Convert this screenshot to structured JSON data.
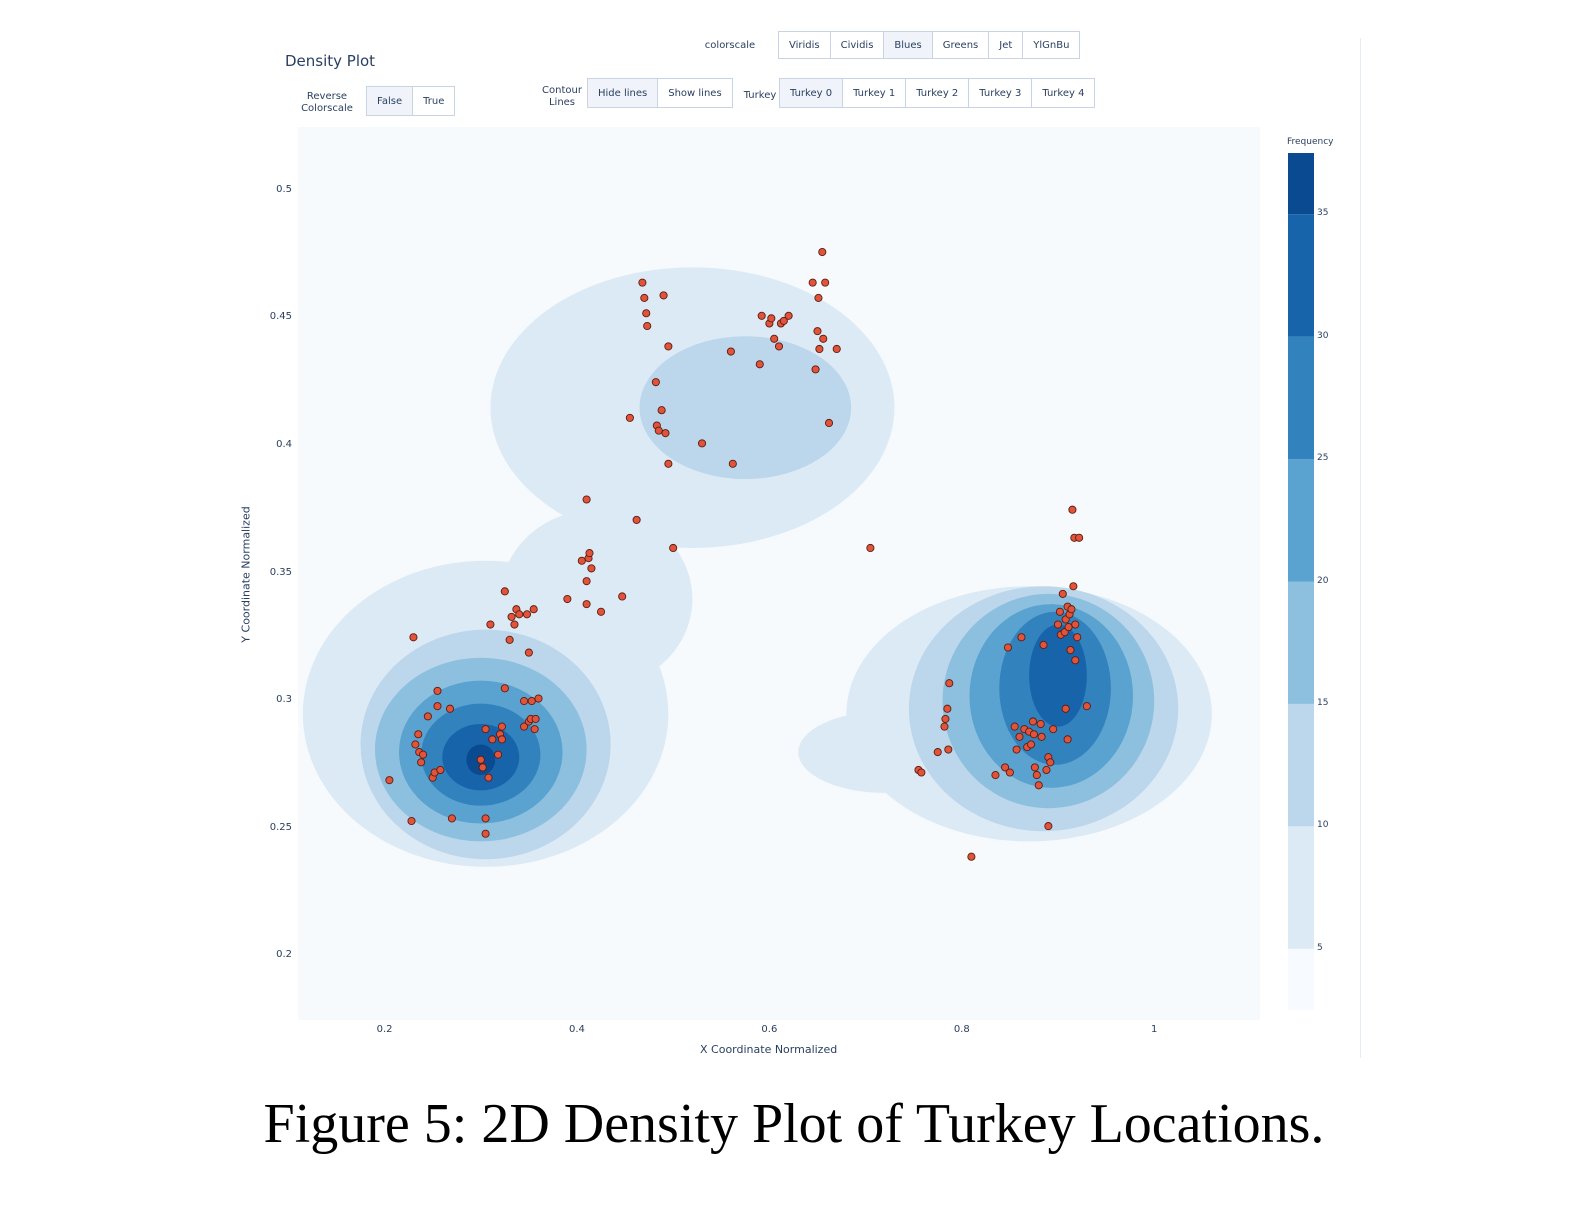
{
  "header": {
    "title": "Density Plot",
    "colorscale_label": "colorscale",
    "colorscales": [
      "Viridis",
      "Cividis",
      "Blues",
      "Greens",
      "Jet",
      "YlGnBu"
    ],
    "reverse_label_1": "Reverse",
    "reverse_label_2": "Colorscale",
    "reverse_options": [
      "False",
      "True"
    ],
    "contour_label_1": "Contour",
    "contour_label_2": "Lines",
    "contour_options": [
      "Hide lines",
      "Show lines"
    ],
    "turkey_label": "Turkey",
    "turkey_options": [
      "Turkey 0",
      "Turkey 1",
      "Turkey 2",
      "Turkey 3",
      "Turkey 4"
    ]
  },
  "caption": "Figure 5: 2D Density Plot of Turkey Locations.",
  "colors": {
    "plot_bg": "#f7fafd",
    "point_fill": "#e2533b",
    "point_stroke": "#5a1e10",
    "blues": [
      "#f7fbff",
      "#dceaf6",
      "#bcd7eb",
      "#8dc0de",
      "#5aa2cf",
      "#3282be",
      "#1764ab",
      "#0a4a90",
      "#08306b"
    ]
  },
  "chart_data": {
    "type": "scatter",
    "overlay": "2d density contour",
    "xlabel": "X Coordinate Normalized",
    "ylabel": "Y Coordinate Normalized",
    "xlim": [
      0.11,
      1.11
    ],
    "ylim": [
      0.175,
      0.525
    ],
    "xticks": [
      0.2,
      0.4,
      0.6,
      0.8,
      1
    ],
    "xtick_labels": [
      "0.2",
      "0.4",
      "0.6",
      "0.8",
      "1"
    ],
    "yticks": [
      0.2,
      0.25,
      0.3,
      0.35,
      0.4,
      0.45,
      0.5
    ],
    "ytick_labels": [
      "0.2",
      "0.25",
      "0.3",
      "0.35",
      "0.4",
      "0.45",
      "0.5"
    ],
    "colorbar": {
      "title": "Frequency",
      "ticks": [
        5,
        10,
        15,
        20,
        25,
        30,
        35
      ],
      "tick_labels": [
        "5",
        "10",
        "15",
        "20",
        "25",
        "30",
        "35"
      ],
      "range": [
        2.5,
        37.5
      ]
    },
    "contour_levels": [
      {
        "level": 5,
        "regions": [
          {
            "cx": 0.305,
            "cy": 0.295,
            "rx": 0.19,
            "ry": 0.06
          },
          {
            "cx": 0.52,
            "cy": 0.415,
            "rx": 0.21,
            "ry": 0.055
          },
          {
            "cx": 0.42,
            "cy": 0.34,
            "rx": 0.1,
            "ry": 0.035
          },
          {
            "cx": 0.87,
            "cy": 0.295,
            "rx": 0.19,
            "ry": 0.05
          },
          {
            "cx": 0.72,
            "cy": 0.28,
            "rx": 0.09,
            "ry": 0.016
          }
        ]
      },
      {
        "level": 10,
        "regions": [
          {
            "cx": 0.305,
            "cy": 0.283,
            "rx": 0.13,
            "ry": 0.045
          },
          {
            "cx": 0.575,
            "cy": 0.415,
            "rx": 0.11,
            "ry": 0.028
          },
          {
            "cx": 0.885,
            "cy": 0.297,
            "rx": 0.14,
            "ry": 0.048
          }
        ]
      },
      {
        "level": 15,
        "regions": [
          {
            "cx": 0.3,
            "cy": 0.281,
            "rx": 0.11,
            "ry": 0.036
          },
          {
            "cx": 0.89,
            "cy": 0.3,
            "rx": 0.11,
            "ry": 0.042
          }
        ]
      },
      {
        "level": 20,
        "regions": [
          {
            "cx": 0.3,
            "cy": 0.28,
            "rx": 0.085,
            "ry": 0.028
          },
          {
            "cx": 0.893,
            "cy": 0.302,
            "rx": 0.085,
            "ry": 0.036
          }
        ]
      },
      {
        "level": 25,
        "regions": [
          {
            "cx": 0.3,
            "cy": 0.279,
            "rx": 0.062,
            "ry": 0.02
          },
          {
            "cx": 0.897,
            "cy": 0.305,
            "rx": 0.058,
            "ry": 0.03
          }
        ]
      },
      {
        "level": 30,
        "regions": [
          {
            "cx": 0.3,
            "cy": 0.278,
            "rx": 0.04,
            "ry": 0.013
          },
          {
            "cx": 0.9,
            "cy": 0.31,
            "rx": 0.03,
            "ry": 0.02
          }
        ]
      },
      {
        "level": 35,
        "regions": [
          {
            "cx": 0.3,
            "cy": 0.277,
            "rx": 0.015,
            "ry": 0.006
          }
        ]
      }
    ],
    "points": [
      [
        0.23,
        0.325
      ],
      [
        0.205,
        0.269
      ],
      [
        0.228,
        0.253
      ],
      [
        0.232,
        0.283
      ],
      [
        0.235,
        0.287
      ],
      [
        0.236,
        0.28
      ],
      [
        0.238,
        0.276
      ],
      [
        0.24,
        0.279
      ],
      [
        0.245,
        0.294
      ],
      [
        0.25,
        0.27
      ],
      [
        0.252,
        0.272
      ],
      [
        0.255,
        0.298
      ],
      [
        0.255,
        0.304
      ],
      [
        0.258,
        0.273
      ],
      [
        0.268,
        0.297
      ],
      [
        0.27,
        0.254
      ],
      [
        0.3,
        0.277
      ],
      [
        0.302,
        0.274
      ],
      [
        0.305,
        0.289
      ],
      [
        0.305,
        0.248
      ],
      [
        0.305,
        0.254
      ],
      [
        0.308,
        0.27
      ],
      [
        0.31,
        0.33
      ],
      [
        0.312,
        0.285
      ],
      [
        0.318,
        0.279
      ],
      [
        0.32,
        0.287
      ],
      [
        0.322,
        0.285
      ],
      [
        0.322,
        0.29
      ],
      [
        0.325,
        0.305
      ],
      [
        0.325,
        0.343
      ],
      [
        0.33,
        0.324
      ],
      [
        0.332,
        0.333
      ],
      [
        0.335,
        0.33
      ],
      [
        0.337,
        0.336
      ],
      [
        0.34,
        0.334
      ],
      [
        0.345,
        0.3
      ],
      [
        0.345,
        0.29
      ],
      [
        0.348,
        0.334
      ],
      [
        0.35,
        0.319
      ],
      [
        0.35,
        0.292
      ],
      [
        0.352,
        0.293
      ],
      [
        0.353,
        0.3
      ],
      [
        0.355,
        0.336
      ],
      [
        0.356,
        0.289
      ],
      [
        0.357,
        0.293
      ],
      [
        0.36,
        0.301
      ],
      [
        0.39,
        0.34
      ],
      [
        0.405,
        0.355
      ],
      [
        0.41,
        0.347
      ],
      [
        0.41,
        0.338
      ],
      [
        0.412,
        0.356
      ],
      [
        0.413,
        0.358
      ],
      [
        0.415,
        0.352
      ],
      [
        0.41,
        0.379
      ],
      [
        0.425,
        0.335
      ],
      [
        0.447,
        0.341
      ],
      [
        0.455,
        0.411
      ],
      [
        0.462,
        0.371
      ],
      [
        0.468,
        0.464
      ],
      [
        0.47,
        0.458
      ],
      [
        0.472,
        0.452
      ],
      [
        0.473,
        0.447
      ],
      [
        0.482,
        0.425
      ],
      [
        0.483,
        0.408
      ],
      [
        0.485,
        0.406
      ],
      [
        0.488,
        0.414
      ],
      [
        0.49,
        0.459
      ],
      [
        0.492,
        0.405
      ],
      [
        0.495,
        0.439
      ],
      [
        0.495,
        0.393
      ],
      [
        0.5,
        0.36
      ],
      [
        0.53,
        0.401
      ],
      [
        0.56,
        0.437
      ],
      [
        0.562,
        0.393
      ],
      [
        0.59,
        0.432
      ],
      [
        0.592,
        0.451
      ],
      [
        0.6,
        0.448
      ],
      [
        0.602,
        0.45
      ],
      [
        0.605,
        0.442
      ],
      [
        0.61,
        0.439
      ],
      [
        0.612,
        0.448
      ],
      [
        0.615,
        0.449
      ],
      [
        0.62,
        0.451
      ],
      [
        0.645,
        0.464
      ],
      [
        0.648,
        0.43
      ],
      [
        0.65,
        0.445
      ],
      [
        0.651,
        0.458
      ],
      [
        0.652,
        0.438
      ],
      [
        0.655,
        0.476
      ],
      [
        0.656,
        0.442
      ],
      [
        0.658,
        0.464
      ],
      [
        0.662,
        0.409
      ],
      [
        0.67,
        0.438
      ],
      [
        0.705,
        0.36
      ],
      [
        0.755,
        0.273
      ],
      [
        0.758,
        0.272
      ],
      [
        0.775,
        0.28
      ],
      [
        0.782,
        0.29
      ],
      [
        0.783,
        0.293
      ],
      [
        0.785,
        0.297
      ],
      [
        0.786,
        0.281
      ],
      [
        0.787,
        0.307
      ],
      [
        0.81,
        0.239
      ],
      [
        0.835,
        0.271
      ],
      [
        0.845,
        0.274
      ],
      [
        0.848,
        0.321
      ],
      [
        0.85,
        0.272
      ],
      [
        0.855,
        0.29
      ],
      [
        0.857,
        0.281
      ],
      [
        0.86,
        0.286
      ],
      [
        0.862,
        0.325
      ],
      [
        0.865,
        0.289
      ],
      [
        0.868,
        0.282
      ],
      [
        0.87,
        0.288
      ],
      [
        0.872,
        0.283
      ],
      [
        0.874,
        0.292
      ],
      [
        0.875,
        0.287
      ],
      [
        0.876,
        0.274
      ],
      [
        0.878,
        0.271
      ],
      [
        0.88,
        0.267
      ],
      [
        0.882,
        0.291
      ],
      [
        0.883,
        0.286
      ],
      [
        0.885,
        0.322
      ],
      [
        0.888,
        0.273
      ],
      [
        0.89,
        0.278
      ],
      [
        0.89,
        0.251
      ],
      [
        0.892,
        0.276
      ],
      [
        0.895,
        0.289
      ],
      [
        0.9,
        0.33
      ],
      [
        0.902,
        0.335
      ],
      [
        0.903,
        0.326
      ],
      [
        0.905,
        0.342
      ],
      [
        0.907,
        0.327
      ],
      [
        0.908,
        0.332
      ],
      [
        0.91,
        0.337
      ],
      [
        0.911,
        0.329
      ],
      [
        0.912,
        0.334
      ],
      [
        0.913,
        0.32
      ],
      [
        0.914,
        0.336
      ],
      [
        0.915,
        0.375
      ],
      [
        0.916,
        0.345
      ],
      [
        0.917,
        0.364
      ],
      [
        0.918,
        0.33
      ],
      [
        0.918,
        0.316
      ],
      [
        0.92,
        0.325
      ],
      [
        0.922,
        0.364
      ],
      [
        0.93,
        0.298
      ],
      [
        0.908,
        0.297
      ],
      [
        0.91,
        0.285
      ]
    ]
  }
}
